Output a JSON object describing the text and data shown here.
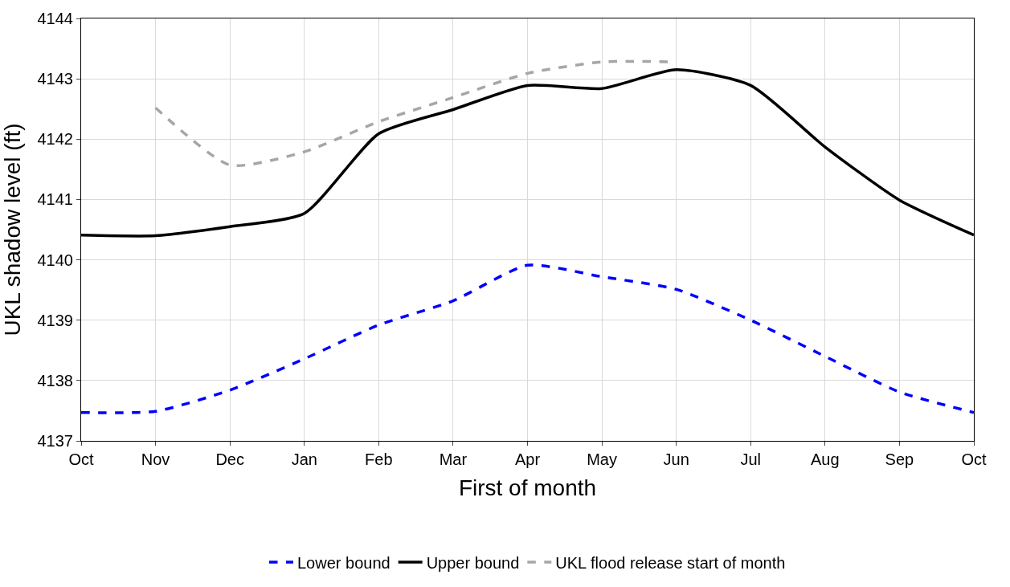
{
  "chart_data": {
    "type": "line",
    "xlabel": "First of month",
    "ylabel": "UKL shadow level (ft)",
    "categories": [
      "Oct",
      "Nov",
      "Dec",
      "Jan",
      "Feb",
      "Mar",
      "Apr",
      "May",
      "Jun",
      "Jul",
      "Aug",
      "Sep",
      "Oct"
    ],
    "ylim": [
      4137,
      4144
    ],
    "yticks": [
      4137,
      4138,
      4139,
      4140,
      4141,
      4142,
      4143,
      4144
    ],
    "grid": true,
    "legend": "bottom",
    "marker": "none",
    "series": [
      {
        "name": "Lower bound",
        "color": "#0000ff",
        "line_style": "dashed",
        "values": [
          4137.47,
          4137.49,
          4137.84,
          4138.36,
          4138.92,
          4139.32,
          4139.91,
          4139.72,
          4139.51,
          4139.0,
          4138.4,
          4137.81,
          4137.47
        ]
      },
      {
        "name": "Upper bound",
        "color": "#000000",
        "line_style": "solid",
        "values": [
          4140.41,
          4140.4,
          4140.55,
          4140.77,
          4142.09,
          4142.49,
          4142.89,
          4142.84,
          4143.15,
          4142.89,
          4141.87,
          4140.99,
          4140.41
        ]
      },
      {
        "name": "UKL flood release start of month",
        "color": "#a6a6a6",
        "line_style": "dashed",
        "values": [
          null,
          4142.52,
          4141.57,
          4141.79,
          4142.29,
          4142.69,
          4143.09,
          4143.28,
          4143.28,
          null,
          null,
          null,
          null
        ]
      }
    ]
  }
}
